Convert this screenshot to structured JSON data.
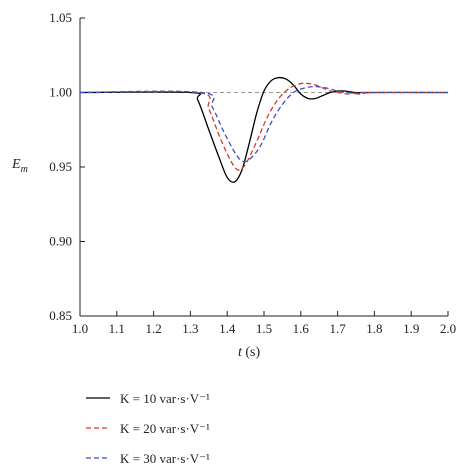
{
  "chart_data": {
    "type": "line",
    "xlabel": "t (s)",
    "ylabel": "E_m",
    "xlim": [
      1.0,
      2.0
    ],
    "ylim": [
      0.85,
      1.05
    ],
    "xticks": [
      1.0,
      1.1,
      1.2,
      1.3,
      1.4,
      1.5,
      1.6,
      1.7,
      1.8,
      1.9,
      2.0
    ],
    "yticks": [
      0.85,
      0.9,
      0.95,
      1.0,
      1.05
    ],
    "xtick_labels": [
      "1.0",
      "1.1",
      "1.2",
      "1.3",
      "1.4",
      "1.5",
      "1.6",
      "1.7",
      "1.8",
      "1.9",
      "2.0"
    ],
    "ytick_labels": [
      "0.85",
      "0.90",
      "0.95",
      "1.00",
      "1.05"
    ],
    "reference_line": {
      "y": 1.0,
      "color": "#999999",
      "style": "dashed"
    },
    "legend_position": "bottom",
    "series": [
      {
        "name": "K = 10 var·s·V⁻¹",
        "color": "#000000",
        "style": "solid",
        "x": [
          1.0,
          1.3,
          1.32,
          1.35,
          1.38,
          1.4,
          1.42,
          1.44,
          1.46,
          1.48,
          1.5,
          1.52,
          1.54,
          1.56,
          1.58,
          1.6,
          1.62,
          1.64,
          1.66,
          1.68,
          1.7,
          1.72,
          1.75,
          1.8,
          1.85,
          2.0
        ],
        "y": [
          1.0,
          1.0,
          0.995,
          0.975,
          0.955,
          0.943,
          0.94,
          0.948,
          0.966,
          0.986,
          1.001,
          1.008,
          1.01,
          1.009,
          1.005,
          0.999,
          0.996,
          0.996,
          0.998,
          1.0,
          1.001,
          1.001,
          1.0,
          1.0,
          1.0,
          1.0
        ]
      },
      {
        "name": "K = 20 var·s·V⁻¹",
        "color": "#d63a2a",
        "style": "dashed",
        "x": [
          1.0,
          1.32,
          1.35,
          1.38,
          1.41,
          1.43,
          1.45,
          1.48,
          1.51,
          1.54,
          1.57,
          1.6,
          1.62,
          1.64,
          1.66,
          1.68,
          1.7,
          1.73,
          1.76,
          1.8,
          2.0
        ],
        "y": [
          1.0,
          1.0,
          0.989,
          0.97,
          0.954,
          0.948,
          0.952,
          0.967,
          0.984,
          0.996,
          1.003,
          1.006,
          1.006,
          1.005,
          1.003,
          1.001,
          1.0,
          0.999,
          1.0,
          1.0,
          1.0
        ]
      },
      {
        "name": "K = 30 var·s·V⁻¹",
        "color": "#3a4fc0",
        "style": "dashed",
        "x": [
          1.0,
          1.33,
          1.36,
          1.39,
          1.42,
          1.44,
          1.46,
          1.49,
          1.52,
          1.55,
          1.58,
          1.61,
          1.64,
          1.67,
          1.7,
          1.73,
          1.76,
          1.8,
          2.0
        ],
        "y": [
          1.0,
          1.0,
          0.99,
          0.974,
          0.96,
          0.954,
          0.955,
          0.964,
          0.98,
          0.992,
          1.0,
          1.003,
          1.004,
          1.003,
          1.001,
          1.0,
          0.999,
          1.0,
          1.0
        ]
      }
    ]
  }
}
